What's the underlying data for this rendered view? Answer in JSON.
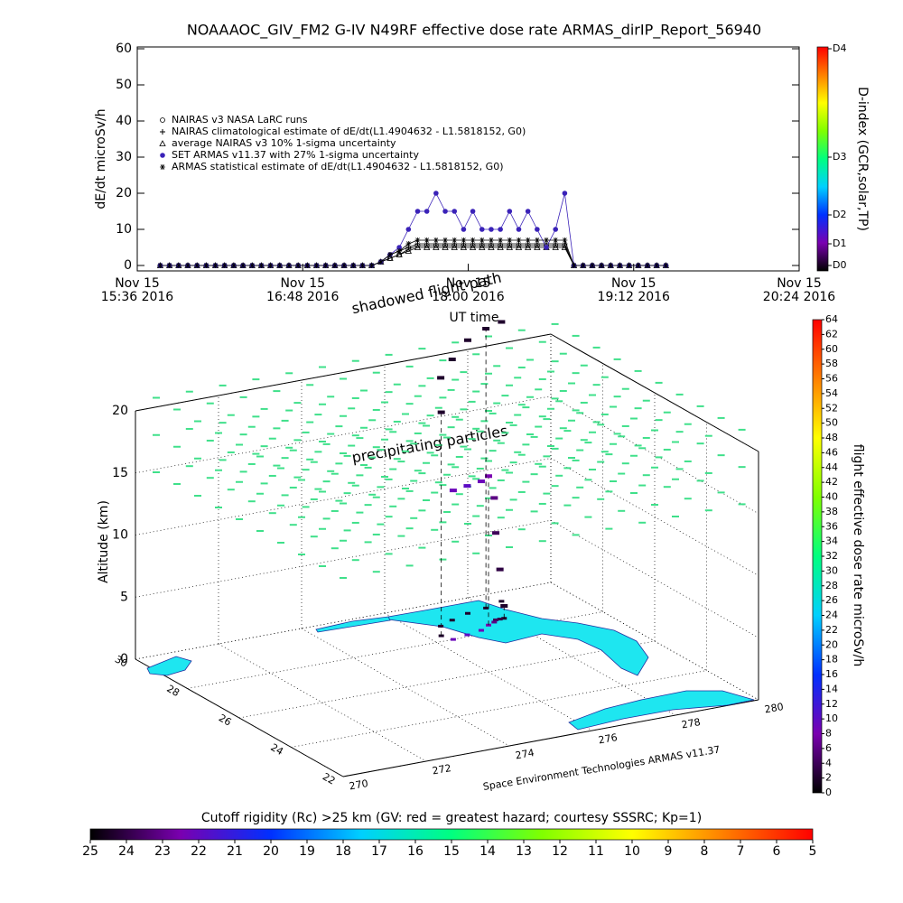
{
  "chart_data": [
    {
      "type": "line",
      "title": "NOAAAOC_GIV_FM2 G-IV    N49RF  effective dose rate ARMAS_dirIP_Report_56940",
      "ylabel": "dE/dt microSv/h",
      "xlabel": "UT time",
      "xlim": [
        936,
        1224
      ],
      "xticks": [
        {
          "value": 936,
          "label": "Nov 15\n15:36 2016"
        },
        {
          "value": 1008,
          "label": "Nov 15\n16:48 2016"
        },
        {
          "value": 1080,
          "label": "Nov 15\n18:00 2016"
        },
        {
          "value": 1152,
          "label": "Nov 15\n19:12 2016"
        },
        {
          "value": 1224,
          "label": "Nov 15\n20:24 2016"
        }
      ],
      "ylim": [
        -1.5,
        60.5
      ],
      "yticks": [
        0,
        10,
        20,
        30,
        40,
        50,
        60
      ],
      "legend": "upper left",
      "x": [
        946,
        950,
        954,
        958,
        962,
        966,
        970,
        974,
        978,
        982,
        986,
        990,
        994,
        998,
        1002,
        1006,
        1010,
        1014,
        1018,
        1022,
        1026,
        1030,
        1034,
        1038,
        1042,
        1046,
        1050,
        1054,
        1058,
        1062,
        1066,
        1070,
        1074,
        1078,
        1082,
        1086,
        1090,
        1094,
        1098,
        1102,
        1106,
        1110,
        1114,
        1118,
        1122,
        1126,
        1130,
        1134,
        1138,
        1142,
        1146,
        1150,
        1154,
        1158,
        1162,
        1166
      ],
      "series": [
        {
          "name": "NAIRAS v3 NASA LaRC runs",
          "color": "#000000",
          "marker": "diamond",
          "values": [
            0,
            0,
            0,
            0,
            0,
            0,
            0,
            0,
            0,
            0,
            0,
            0,
            0,
            0,
            0,
            0,
            0,
            0,
            0,
            0,
            0,
            0,
            0,
            0,
            1,
            2,
            3,
            4.5,
            5.5,
            5.5,
            5.5,
            5.5,
            5.5,
            5.5,
            5.5,
            5.5,
            5.5,
            5.5,
            5.5,
            5.5,
            5.5,
            5.5,
            5.5,
            5.5,
            5.5,
            0,
            0,
            0,
            0,
            0,
            0,
            0,
            0,
            0,
            0,
            0
          ]
        },
        {
          "name": "NAIRAS climatological estimate of dE/dt(L1.4904632 - L1.5818152, G0)",
          "color": "#000000",
          "marker": "plus",
          "values": [
            0,
            0,
            0,
            0,
            0,
            0,
            0,
            0,
            0,
            0,
            0,
            0,
            0,
            0,
            0,
            0,
            0,
            0,
            0,
            0,
            0,
            0,
            0,
            0,
            1,
            3,
            4,
            5,
            6,
            6,
            6,
            6,
            6,
            6,
            6,
            6,
            6,
            6,
            6,
            6,
            6,
            6,
            6,
            6,
            6,
            0,
            0,
            0,
            0,
            0,
            0,
            0,
            0,
            0,
            0,
            0
          ]
        },
        {
          "name": "average NAIRAS v3 10% 1-sigma uncertainty",
          "color": "#000000",
          "marker": "triangle",
          "values": [
            0,
            0,
            0,
            0,
            0,
            0,
            0,
            0,
            0,
            0,
            0,
            0,
            0,
            0,
            0,
            0,
            0,
            0,
            0,
            0,
            0,
            0,
            0,
            0,
            1,
            2,
            3,
            4,
            5,
            5,
            5,
            5,
            5,
            5,
            5,
            5,
            5,
            5,
            5,
            5,
            5,
            5,
            5,
            5,
            5,
            0,
            0,
            0,
            0,
            0,
            0,
            0,
            0,
            0,
            0,
            0
          ]
        },
        {
          "name": "SET ARMAS v11.37 with 27% 1-sigma uncertainty",
          "color": "#3a22b8",
          "marker": "dot",
          "values": [
            0,
            0,
            0,
            0,
            0,
            0,
            0,
            0,
            0,
            0,
            0,
            0,
            0,
            0,
            0,
            0,
            0,
            0,
            0,
            0,
            0,
            0,
            0,
            0,
            1,
            3,
            5,
            10,
            15,
            15,
            20,
            15,
            15,
            10,
            15,
            10,
            10,
            10,
            15,
            10,
            15,
            10,
            5,
            10,
            20,
            0,
            0,
            0,
            0,
            0,
            0,
            0,
            0,
            0,
            0,
            0
          ]
        },
        {
          "name": "ARMAS statistical estimate of dE/dt(L1.4904632 - L1.5818152, G0)",
          "color": "#000000",
          "marker": "asterisk",
          "values": [
            0,
            0,
            0,
            0,
            0,
            0,
            0,
            0,
            0,
            0,
            0,
            0,
            0,
            0,
            0,
            0,
            0,
            0,
            0,
            0,
            0,
            0,
            0,
            0,
            1,
            3,
            4,
            6,
            7,
            7,
            7,
            7,
            7,
            7,
            7,
            7,
            7,
            7,
            7,
            7,
            7,
            7,
            7,
            7,
            7,
            0,
            0,
            0,
            0,
            0,
            0,
            0,
            0,
            0,
            0,
            0
          ]
        }
      ],
      "y2label": "D-index (GCR,solar,TP)",
      "y2ticks": [
        {
          "value": 0,
          "label": "D0"
        },
        {
          "value": 6,
          "label": "D1"
        },
        {
          "value": 14,
          "label": "D2"
        },
        {
          "value": 30,
          "label": "D3"
        },
        {
          "value": 60,
          "label": "D4"
        }
      ]
    },
    {
      "type": "scatter3d",
      "annotations": [
        "shadowed flight path",
        "precipitating particles"
      ],
      "zlabel": "Altitude (km)",
      "credit": "Space Environment Technologies ARMAS v11.37",
      "xlim": [
        270,
        280
      ],
      "xticks": [
        270,
        272,
        274,
        276,
        278,
        280
      ],
      "ylim": [
        22,
        30
      ],
      "yticks": [
        22,
        24,
        26,
        28,
        30
      ],
      "zlim": [
        0,
        20
      ],
      "zticks": [
        0,
        5,
        10,
        15,
        20
      ],
      "x": [
        278.0,
        277.9,
        277.8,
        277.7,
        277.5,
        277.2,
        276.8,
        276.4,
        276.3,
        276.6,
        277.0,
        277.5,
        278.0,
        278.5
      ],
      "y": [
        28.6,
        28.6,
        28.6,
        28.5,
        28.4,
        28.2,
        28.1,
        28.0,
        28.3,
        28.8,
        29.0,
        29.2,
        29.3,
        29.5
      ],
      "z": [
        1,
        4,
        7,
        10,
        12,
        12,
        12,
        12,
        18,
        20,
        21,
        22,
        22.5,
        22.5
      ],
      "dose": [
        2,
        3,
        4,
        6,
        8,
        9,
        10,
        9,
        2,
        2,
        2,
        2,
        2,
        2
      ],
      "clabel": "flight effective dose rate microSv/h",
      "clim": [
        0,
        64
      ],
      "cticks": [
        0,
        2,
        4,
        6,
        8,
        10,
        12,
        14,
        16,
        18,
        20,
        22,
        24,
        26,
        28,
        30,
        32,
        34,
        36,
        38,
        40,
        42,
        44,
        46,
        48,
        50,
        52,
        54,
        56,
        58,
        60,
        62,
        64
      ]
    }
  ],
  "colormap": [
    "#000000",
    "#7a00b0",
    "#0030ff",
    "#00d0ff",
    "#00ff80",
    "#80ff00",
    "#ffff00",
    "#ff8000",
    "#ff0000"
  ],
  "rigidity": {
    "label": "Cutoff rigidity (Rc) >25 km (GV: red = greatest hazard; courtesy SSSRC; Kp=1)",
    "lim": [
      25,
      5
    ],
    "ticks": [
      25,
      24,
      23,
      22,
      21,
      20,
      19,
      18,
      17,
      16,
      15,
      14,
      13,
      12,
      11,
      10,
      9,
      8,
      7,
      6,
      5
    ]
  }
}
